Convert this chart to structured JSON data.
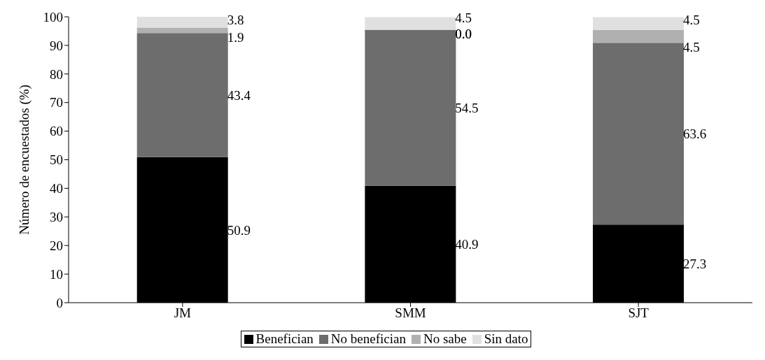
{
  "chart_data": {
    "type": "bar",
    "stacked": true,
    "ylabel": "Número de encuestados (%)",
    "categories": [
      "JM",
      "SMM",
      "SJT"
    ],
    "ylim": [
      0,
      100
    ],
    "yticks": [
      0,
      10,
      20,
      30,
      40,
      50,
      60,
      70,
      80,
      90,
      100
    ],
    "grid": false,
    "legend": "bottom",
    "series": [
      {
        "name": "Benefician",
        "color": "#000000",
        "values": [
          50.9,
          40.9,
          27.3
        ],
        "value_labels": [
          "50.9",
          "40.9",
          "27.3"
        ]
      },
      {
        "name": "No benefician",
        "color": "#6d6d6d",
        "values": [
          43.4,
          54.5,
          63.6
        ],
        "value_labels": [
          "43.4",
          "54.5",
          "63.6"
        ]
      },
      {
        "name": "No sabe",
        "color": "#b0b0b0",
        "values": [
          1.9,
          0.0,
          4.5
        ],
        "value_labels": [
          "1.9",
          "0.0",
          "4.5"
        ]
      },
      {
        "name": "Sin dato",
        "color": "#e0e0e0",
        "values": [
          3.8,
          4.5,
          4.5
        ],
        "value_labels": [
          "3.8",
          "4.5",
          "4.5"
        ]
      }
    ]
  }
}
